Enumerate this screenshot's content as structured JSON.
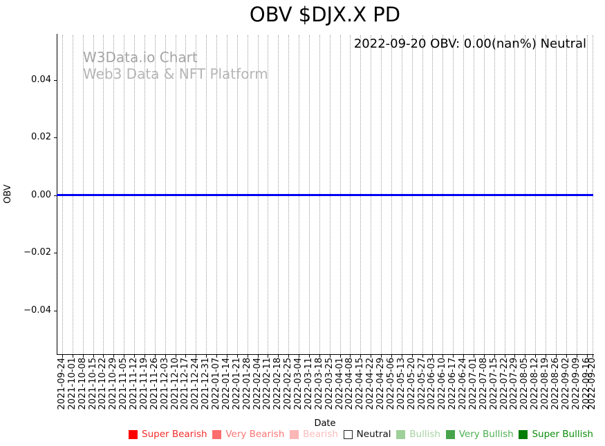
{
  "annotation": {
    "text": "2022-09-20 OBV: 0.00(nan%) Neutral"
  },
  "watermark": {
    "line1": "W3Data.io Chart",
    "line2": "Web3 Data & NFT Platform"
  },
  "chart_data": {
    "type": "line",
    "title": "OBV $DJX.X PD",
    "xlabel": "Date",
    "ylabel": "OBV",
    "grid": "vertical-dotted",
    "ylim": [
      -0.055,
      0.056
    ],
    "yticks": [
      0.04,
      0.02,
      0.0,
      -0.02,
      -0.04
    ],
    "ytick_labels": [
      "0.04",
      "0.02",
      "0.00",
      "−0.02",
      "−0.04"
    ],
    "line_color": "#0000f5",
    "x": [
      "2021-09-24",
      "2021-10-01",
      "2021-10-08",
      "2021-10-15",
      "2021-10-22",
      "2021-10-29",
      "2021-11-05",
      "2021-11-12",
      "2021-11-19",
      "2021-11-26",
      "2021-12-03",
      "2021-12-10",
      "2021-12-17",
      "2021-12-24",
      "2021-12-31",
      "2022-01-07",
      "2022-01-14",
      "2022-01-21",
      "2022-01-28",
      "2022-02-04",
      "2022-02-11",
      "2022-02-18",
      "2022-02-25",
      "2022-03-04",
      "2022-03-11",
      "2022-03-18",
      "2022-03-25",
      "2022-04-01",
      "2022-04-08",
      "2022-04-15",
      "2022-04-22",
      "2022-04-29",
      "2022-05-06",
      "2022-05-13",
      "2022-05-20",
      "2022-05-27",
      "2022-06-03",
      "2022-06-10",
      "2022-06-17",
      "2022-06-24",
      "2022-07-01",
      "2022-07-08",
      "2022-07-15",
      "2022-07-22",
      "2022-07-29",
      "2022-08-05",
      "2022-08-12",
      "2022-08-19",
      "2022-08-26",
      "2022-09-02",
      "2022-09-09",
      "2022-09-16",
      "2022-09-20"
    ],
    "series": [
      {
        "name": "OBV",
        "values": [
          0,
          0,
          0,
          0,
          0,
          0,
          0,
          0,
          0,
          0,
          0,
          0,
          0,
          0,
          0,
          0,
          0,
          0,
          0,
          0,
          0,
          0,
          0,
          0,
          0,
          0,
          0,
          0,
          0,
          0,
          0,
          0,
          0,
          0,
          0,
          0,
          0,
          0,
          0,
          0,
          0,
          0,
          0,
          0,
          0,
          0,
          0,
          0,
          0,
          0,
          0,
          0,
          0
        ]
      }
    ],
    "legend_position": "bottom",
    "legend": [
      {
        "label": "Super Bearish",
        "swatch_color": "#fe0000",
        "text_color": "#f32b2b",
        "border": false
      },
      {
        "label": "Very Bearish",
        "swatch_color": "#fc6d6d",
        "text_color": "#fb7575",
        "border": false
      },
      {
        "label": "Bearish",
        "swatch_color": "#fbb6b6",
        "text_color": "#fbbcbc",
        "border": false
      },
      {
        "label": "Neutral",
        "swatch_color": "#ffffff",
        "text_color": "#111111",
        "border": true
      },
      {
        "label": "Bullish",
        "swatch_color": "#9ed09a",
        "text_color": "#a6d3a2",
        "border": false
      },
      {
        "label": "Very Bullish",
        "swatch_color": "#47a44b",
        "text_color": "#4daf52",
        "border": false
      },
      {
        "label": "Super Bullish",
        "swatch_color": "#067d06",
        "text_color": "#0b8e0b",
        "border": false
      }
    ]
  }
}
